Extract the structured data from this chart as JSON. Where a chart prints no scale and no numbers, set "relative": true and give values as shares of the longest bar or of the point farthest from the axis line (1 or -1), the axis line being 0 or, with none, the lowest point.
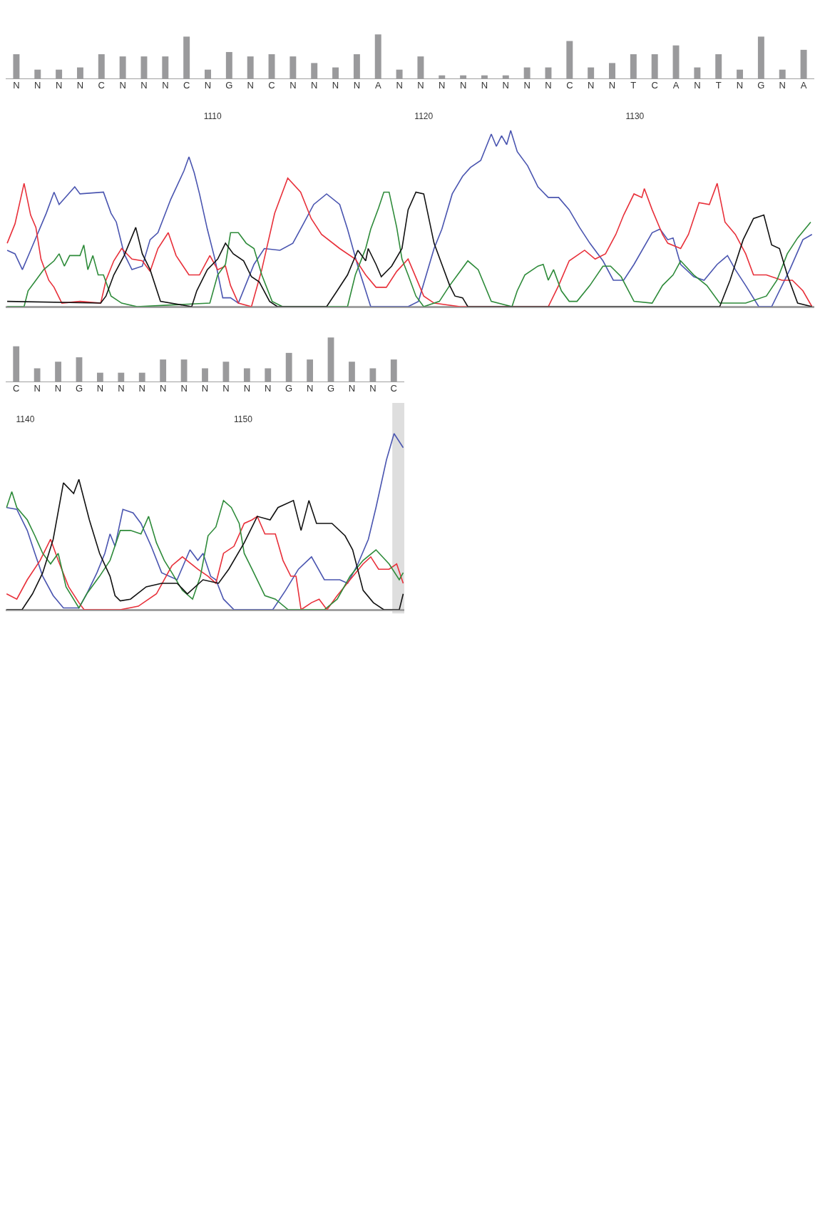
{
  "chart_data": [
    {
      "type": "bar",
      "relative": true,
      "categories": [
        "N",
        "N",
        "N",
        "N",
        "C",
        "N",
        "N",
        "N",
        "C",
        "N",
        "G",
        "N",
        "C",
        "N",
        "N",
        "N",
        "N",
        "A",
        "N",
        "N",
        "N",
        "N",
        "N",
        "N",
        "N",
        "N",
        "C",
        "N",
        "N",
        "T",
        "C",
        "A",
        "N",
        "T",
        "N",
        "G",
        "N",
        "A"
      ],
      "values": [
        0.55,
        0.2,
        0.2,
        0.25,
        0.55,
        0.5,
        0.5,
        0.5,
        0.95,
        0.2,
        0.6,
        0.5,
        0.55,
        0.5,
        0.35,
        0.25,
        0.55,
        1,
        0.2,
        0.5,
        0.07,
        0.07,
        0.07,
        0.07,
        0.25,
        0.25,
        0.85,
        0.25,
        0.35,
        0.55,
        0.55,
        0.75,
        0.25,
        0.55,
        0.2,
        0.95,
        0.2,
        0.65
      ],
      "color": "#9a9a9c"
    },
    {
      "type": "line",
      "relative": true,
      "xlim": [
        1100.2,
        1138.5
      ],
      "xticks": [
        1110,
        1120,
        1130
      ],
      "grid": false,
      "marker": "none",
      "line_style": "solid",
      "series": [
        {
          "color": "#4a55b0",
          "x": [
            1100.27,
            1100.64,
            1100.99,
            1101.38,
            1102.12,
            1102.49,
            1102.73,
            1103.47,
            1103.72,
            1104.83,
            1105.19,
            1105.44,
            1105.81,
            1106.18,
            1106.67,
            1107.04,
            1107.41,
            1108.02,
            1108.64,
            1108.88,
            1109.13,
            1109.38,
            1109.75,
            1110.11,
            1110.48,
            1110.85,
            1111.22,
            1111.96,
            1112.45,
            1113.19,
            1113.8,
            1114.3,
            1114.79,
            1115.4,
            1116.02,
            1116.39,
            1116.88,
            1117.49,
            1119.26,
            1119.75,
            1120.49,
            1120.86,
            1121.35,
            1121.84,
            1122.21,
            1122.7,
            1123.2,
            1123.44,
            1123.69,
            1123.93,
            1124.12,
            1124.43,
            1124.92,
            1125.41,
            1125.9,
            1126.39,
            1126.89,
            1127.38,
            1127.87,
            1128.49,
            1128.98,
            1129.47,
            1129.96,
            1130.82,
            1131.19,
            1131.56,
            1131.81,
            1132.17,
            1132.79,
            1133.28,
            1133.9,
            1134.39,
            1134.76,
            1135.25,
            1135.87,
            1136.48,
            1137.34,
            1137.96,
            1138.39
          ],
          "values": [
            0.32,
            0.3,
            0.21,
            0.32,
            0.53,
            0.65,
            0.58,
            0.68,
            0.64,
            0.65,
            0.53,
            0.48,
            0.3,
            0.21,
            0.23,
            0.38,
            0.42,
            0.61,
            0.77,
            0.85,
            0.76,
            0.64,
            0.44,
            0.27,
            0.05,
            0.05,
            0.02,
            0.24,
            0.33,
            0.32,
            0.36,
            0.47,
            0.58,
            0.64,
            0.58,
            0.44,
            0.23,
            0,
            0,
            0.03,
            0.33,
            0.44,
            0.64,
            0.74,
            0.79,
            0.83,
            0.98,
            0.91,
            0.97,
            0.92,
            1,
            0.88,
            0.8,
            0.68,
            0.62,
            0.62,
            0.55,
            0.45,
            0.36,
            0.26,
            0.15,
            0.15,
            0.24,
            0.42,
            0.44,
            0.38,
            0.39,
            0.24,
            0.17,
            0.15,
            0.24,
            0.29,
            0.21,
            0.12,
            0,
            0,
            0.21,
            0.38,
            0.41
          ]
        },
        {
          "color": "#e8303a",
          "x": [
            1100.27,
            1100.64,
            1101.07,
            1101.38,
            1101.63,
            1101.87,
            1102.24,
            1102.49,
            1102.86,
            1103.72,
            1104.7,
            1104.95,
            1105.32,
            1105.69,
            1106.18,
            1106.67,
            1107.04,
            1107.41,
            1107.9,
            1108.27,
            1108.88,
            1109.38,
            1109.87,
            1110.24,
            1110.61,
            1110.85,
            1111.22,
            1111.84,
            1112.33,
            1112.94,
            1113.56,
            1114.17,
            1114.67,
            1115.16,
            1116.02,
            1116.76,
            1117.25,
            1117.74,
            1118.23,
            1118.72,
            1119.26,
            1119.51,
            1120,
            1120.49,
            1121.72,
            1125.9,
            1126.39,
            1126.89,
            1127.62,
            1128.12,
            1128.61,
            1129.1,
            1129.47,
            1129.96,
            1130.33,
            1130.45,
            1130.82,
            1131.31,
            1131.56,
            1132.17,
            1132.54,
            1133.04,
            1133.53,
            1133.9,
            1134.27,
            1134.76,
            1135.25,
            1135.62,
            1136.23,
            1136.97,
            1137.46,
            1137.96,
            1138.39
          ],
          "values": [
            0.36,
            0.47,
            0.7,
            0.52,
            0.45,
            0.27,
            0.15,
            0.11,
            0.02,
            0.03,
            0.02,
            0.15,
            0.26,
            0.33,
            0.27,
            0.26,
            0.2,
            0.33,
            0.42,
            0.29,
            0.18,
            0.18,
            0.29,
            0.21,
            0.23,
            0.12,
            0.02,
            0,
            0.21,
            0.53,
            0.73,
            0.65,
            0.5,
            0.41,
            0.33,
            0.27,
            0.18,
            0.11,
            0.11,
            0.2,
            0.27,
            0.2,
            0.06,
            0.02,
            0,
            0,
            0.12,
            0.26,
            0.32,
            0.27,
            0.3,
            0.41,
            0.52,
            0.64,
            0.62,
            0.67,
            0.55,
            0.41,
            0.36,
            0.33,
            0.41,
            0.59,
            0.58,
            0.7,
            0.48,
            0.41,
            0.3,
            0.18,
            0.18,
            0.15,
            0.15,
            0.09,
            0
          ]
        },
        {
          "color": "#2e8b3a",
          "x": [
            1100.27,
            1101.07,
            1101.26,
            1101.63,
            1102,
            1102.49,
            1102.73,
            1102.98,
            1103.23,
            1103.72,
            1103.9,
            1104.09,
            1104.33,
            1104.58,
            1104.83,
            1105.19,
            1105.69,
            1106.42,
            1109.87,
            1110.24,
            1110.61,
            1110.85,
            1111.22,
            1111.59,
            1111.96,
            1112.33,
            1112.82,
            1113.31,
            1116.39,
            1116.76,
            1117.25,
            1117.49,
            1117.86,
            1118.11,
            1118.36,
            1118.72,
            1118.97,
            1119.26,
            1119.63,
            1120,
            1120.74,
            1121.23,
            1121.6,
            1122.09,
            1122.58,
            1123.2,
            1124.18,
            1124.43,
            1124.79,
            1125.41,
            1125.66,
            1125.9,
            1126.15,
            1126.52,
            1126.89,
            1127.26,
            1127.87,
            1128.49,
            1128.85,
            1129.35,
            1129.96,
            1130.82,
            1131.31,
            1131.81,
            1132.17,
            1132.79,
            1133.41,
            1134.02,
            1135.25,
            1136.23,
            1136.73,
            1137.22,
            1137.71,
            1138.33
          ],
          "values": [
            0,
            0,
            0.09,
            0.15,
            0.21,
            0.26,
            0.3,
            0.23,
            0.29,
            0.29,
            0.35,
            0.21,
            0.29,
            0.18,
            0.18,
            0.06,
            0.02,
            0,
            0.02,
            0.18,
            0.24,
            0.42,
            0.42,
            0.36,
            0.33,
            0.18,
            0.03,
            0,
            0,
            0.18,
            0.33,
            0.44,
            0.56,
            0.65,
            0.65,
            0.45,
            0.27,
            0.18,
            0.06,
            0,
            0.03,
            0.12,
            0.18,
            0.26,
            0.21,
            0.03,
            0,
            0.09,
            0.18,
            0.23,
            0.24,
            0.15,
            0.21,
            0.09,
            0.03,
            0.03,
            0.12,
            0.23,
            0.23,
            0.17,
            0.03,
            0.02,
            0.12,
            0.18,
            0.26,
            0.18,
            0.12,
            0.02,
            0.02,
            0.06,
            0.15,
            0.3,
            0.39,
            0.48
          ]
        },
        {
          "color": "#111111",
          "x": [
            1100.27,
            1104.7,
            1104.95,
            1105.32,
            1105.81,
            1106.36,
            1106.67,
            1107.04,
            1107.53,
            1109.01,
            1109.25,
            1109.75,
            1110.24,
            1110.61,
            1110.98,
            1111.47,
            1111.84,
            1112.21,
            1112.7,
            1113.07,
            1115.4,
            1115.9,
            1116.39,
            1116.88,
            1117.25,
            1117.37,
            1117.74,
            1117.99,
            1118.48,
            1118.97,
            1119.26,
            1119.63,
            1120,
            1120.49,
            1120.86,
            1121.23,
            1121.48,
            1121.84,
            1122.09,
            1134.02,
            1134.51,
            1135.13,
            1135.62,
            1136.11,
            1136.48,
            1136.85,
            1137.22,
            1137.71,
            1138.39
          ],
          "values": [
            0.03,
            0.02,
            0.06,
            0.18,
            0.29,
            0.45,
            0.3,
            0.21,
            0.03,
            0,
            0.09,
            0.21,
            0.27,
            0.36,
            0.3,
            0.26,
            0.17,
            0.14,
            0.03,
            0,
            0,
            0.09,
            0.18,
            0.32,
            0.26,
            0.33,
            0.24,
            0.17,
            0.23,
            0.33,
            0.55,
            0.65,
            0.64,
            0.36,
            0.24,
            0.12,
            0.06,
            0.05,
            0,
            0,
            0.15,
            0.38,
            0.5,
            0.52,
            0.35,
            0.33,
            0.18,
            0.02,
            0
          ]
        }
      ]
    },
    {
      "type": "bar",
      "relative": true,
      "categories": [
        "C",
        "N",
        "N",
        "G",
        "N",
        "N",
        "N",
        "N",
        "N",
        "N",
        "N",
        "N",
        "N",
        "G",
        "N",
        "G",
        "N",
        "N",
        "C"
      ],
      "values": [
        0.8,
        0.3,
        0.45,
        0.55,
        0.2,
        0.2,
        0.2,
        0.5,
        0.5,
        0.3,
        0.45,
        0.3,
        0.3,
        0.65,
        0.5,
        1,
        0.45,
        0.3,
        0.5
      ],
      "color": "#9a9a9c"
    },
    {
      "type": "line",
      "relative": true,
      "xlim": [
        1139.1,
        1157.4
      ],
      "xticks": [
        1140,
        1150
      ],
      "grid": false,
      "marker": "none",
      "line_style": "solid",
      "bands": [
        {
          "axis": "x",
          "from": 1156.85,
          "to": 1157.4,
          "color": "#dedede"
        }
      ],
      "series": [
        {
          "color": "#4a55b0",
          "x": [
            1139.14,
            1139.61,
            1140.09,
            1140.44,
            1140.8,
            1141.28,
            1141.75,
            1142.46,
            1142.82,
            1143.29,
            1143.65,
            1143.89,
            1144.12,
            1144.48,
            1144.95,
            1145.31,
            1145.78,
            1146.26,
            1146.97,
            1147.56,
            1147.92,
            1148.16,
            1148.51,
            1148.75,
            1149.1,
            1149.58,
            1151.36,
            1151.95,
            1152.54,
            1153.14,
            1153.73,
            1154.44,
            1154.8,
            1155.27,
            1155.75,
            1156.1,
            1156.58,
            1156.93,
            1157.35
          ],
          "values": [
            0.58,
            0.57,
            0.45,
            0.32,
            0.19,
            0.08,
            0.01,
            0.01,
            0.09,
            0.21,
            0.32,
            0.43,
            0.36,
            0.57,
            0.55,
            0.49,
            0.36,
            0.21,
            0.17,
            0.34,
            0.28,
            0.32,
            0.19,
            0.17,
            0.06,
            0,
            0,
            0.11,
            0.23,
            0.3,
            0.17,
            0.17,
            0.15,
            0.26,
            0.4,
            0.58,
            0.85,
            1,
            0.92
          ]
        },
        {
          "color": "#e8303a",
          "x": [
            1139.14,
            1139.61,
            1140.09,
            1140.68,
            1141.16,
            1141.51,
            1141.99,
            1142.46,
            1142.7,
            1144.36,
            1145.19,
            1146.02,
            1146.73,
            1147.21,
            1147.92,
            1148.39,
            1148.75,
            1149.1,
            1149.58,
            1150.05,
            1150.41,
            1150.65,
            1151,
            1151.48,
            1151.83,
            1152.19,
            1152.43,
            1152.66,
            1153.14,
            1153.49,
            1153.85,
            1154.32,
            1154.91,
            1155.51,
            1155.86,
            1156.22,
            1156.7,
            1157.05,
            1157.35
          ],
          "values": [
            0.09,
            0.06,
            0.17,
            0.28,
            0.4,
            0.28,
            0.13,
            0.04,
            0,
            0,
            0.02,
            0.09,
            0.25,
            0.3,
            0.23,
            0.19,
            0.15,
            0.32,
            0.36,
            0.49,
            0.51,
            0.53,
            0.43,
            0.43,
            0.28,
            0.19,
            0.19,
            0,
            0.04,
            0.06,
            0,
            0.08,
            0.17,
            0.26,
            0.3,
            0.23,
            0.23,
            0.26,
            0.15
          ]
        },
        {
          "color": "#2e8b3a",
          "x": [
            1139.14,
            1139.38,
            1139.61,
            1140.09,
            1140.44,
            1140.8,
            1141.16,
            1141.51,
            1141.87,
            1142.46,
            1142.82,
            1143.41,
            1143.89,
            1144.36,
            1144.83,
            1145.31,
            1145.66,
            1146.02,
            1146.38,
            1146.73,
            1147.21,
            1147.68,
            1148.04,
            1148.39,
            1148.75,
            1149.1,
            1149.46,
            1149.82,
            1150.05,
            1150.41,
            1151,
            1151.48,
            1152.07,
            1153.73,
            1154.32,
            1154.91,
            1155.51,
            1156.1,
            1156.7,
            1157.17,
            1157.35
          ],
          "values": [
            0.58,
            0.67,
            0.58,
            0.51,
            0.42,
            0.32,
            0.26,
            0.32,
            0.13,
            0.01,
            0.09,
            0.19,
            0.28,
            0.45,
            0.45,
            0.43,
            0.53,
            0.38,
            0.28,
            0.21,
            0.11,
            0.06,
            0.19,
            0.42,
            0.47,
            0.62,
            0.58,
            0.49,
            0.32,
            0.23,
            0.08,
            0.06,
            0,
            0,
            0.06,
            0.19,
            0.28,
            0.34,
            0.26,
            0.17,
            0.21
          ]
        },
        {
          "color": "#111111",
          "x": [
            1139.14,
            1139.85,
            1140.33,
            1140.8,
            1141.28,
            1141.75,
            1142.22,
            1142.46,
            1142.94,
            1143.41,
            1143.89,
            1144.12,
            1144.36,
            1144.83,
            1145.55,
            1146.26,
            1146.97,
            1147.44,
            1148.16,
            1148.87,
            1149.34,
            1150.05,
            1150.65,
            1151.24,
            1151.6,
            1152.31,
            1152.66,
            1153.02,
            1153.37,
            1154.08,
            1154.68,
            1155.03,
            1155.51,
            1155.98,
            1156.46,
            1157.17,
            1157.35
          ],
          "values": [
            0,
            0,
            0.09,
            0.21,
            0.4,
            0.72,
            0.66,
            0.74,
            0.51,
            0.32,
            0.19,
            0.08,
            0.05,
            0.06,
            0.13,
            0.15,
            0.15,
            0.09,
            0.17,
            0.15,
            0.23,
            0.38,
            0.53,
            0.51,
            0.58,
            0.62,
            0.45,
            0.62,
            0.49,
            0.49,
            0.42,
            0.34,
            0.11,
            0.04,
            0,
            0,
            0.09
          ]
        }
      ]
    }
  ]
}
